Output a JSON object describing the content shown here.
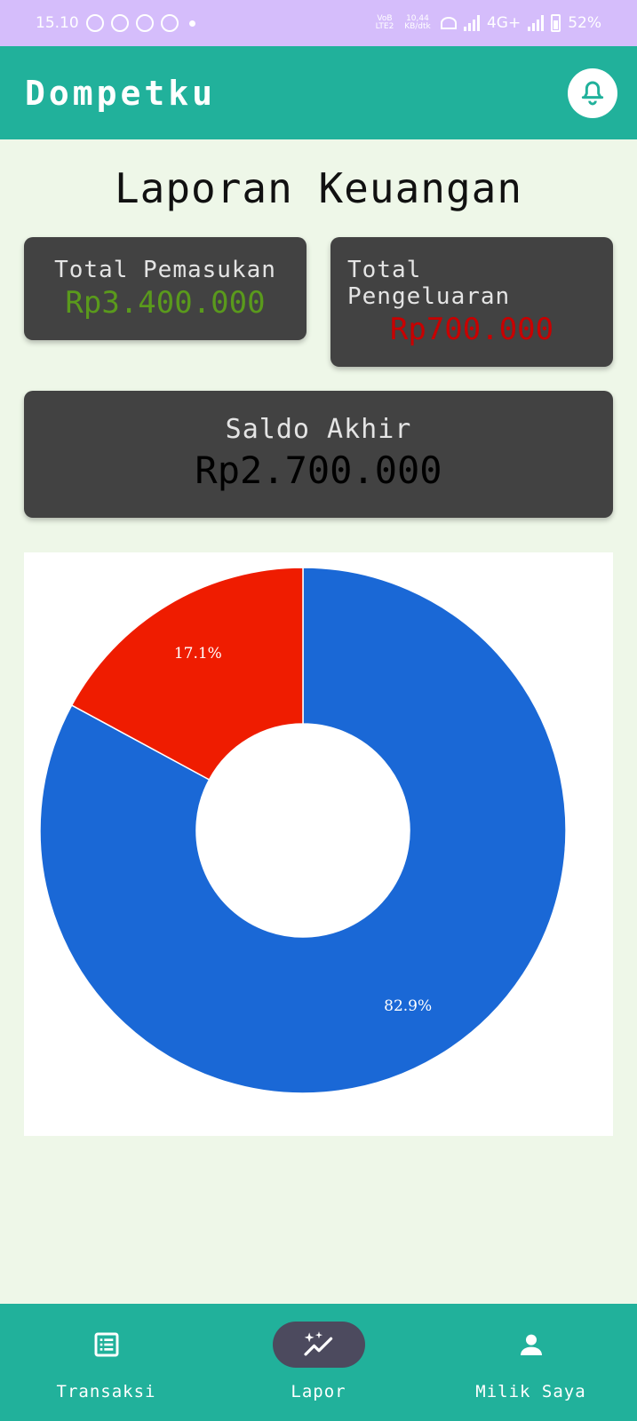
{
  "status_bar": {
    "time": "15.10",
    "net_volte": "VoB LTE2",
    "net_speed": "10,44 KB/dtk",
    "network": "4G+",
    "battery": "52%"
  },
  "app_bar": {
    "title": "Dompetku",
    "bell_icon": "bell-icon"
  },
  "page_title": "Laporan Keuangan",
  "summary": {
    "income_label": "Total Pemasukan",
    "income_value": "Rp3.400.000",
    "expense_label": "Total Pengeluaran",
    "expense_value": "Rp700.000",
    "balance_label": "Saldo Akhir",
    "balance_value": "Rp2.700.000"
  },
  "colors": {
    "accent": "#21b19b",
    "income": "#5a9a1c",
    "expense": "#c80000",
    "chart_blue": "#1a68d6",
    "chart_red": "#ef1c00"
  },
  "chart_data": {
    "type": "pie",
    "donut": true,
    "slices": [
      {
        "label": "82.9%",
        "value": 82.9,
        "color": "#1a68d6"
      },
      {
        "label": "17.1%",
        "value": 17.1,
        "color": "#ef1c00"
      }
    ]
  },
  "bottom_nav": {
    "items": [
      {
        "label": "Transaksi",
        "icon": "list-icon"
      },
      {
        "label": "Lapor",
        "icon": "sparkle-chart-icon",
        "active": true
      },
      {
        "label": "Milik Saya",
        "icon": "person-icon"
      }
    ]
  }
}
